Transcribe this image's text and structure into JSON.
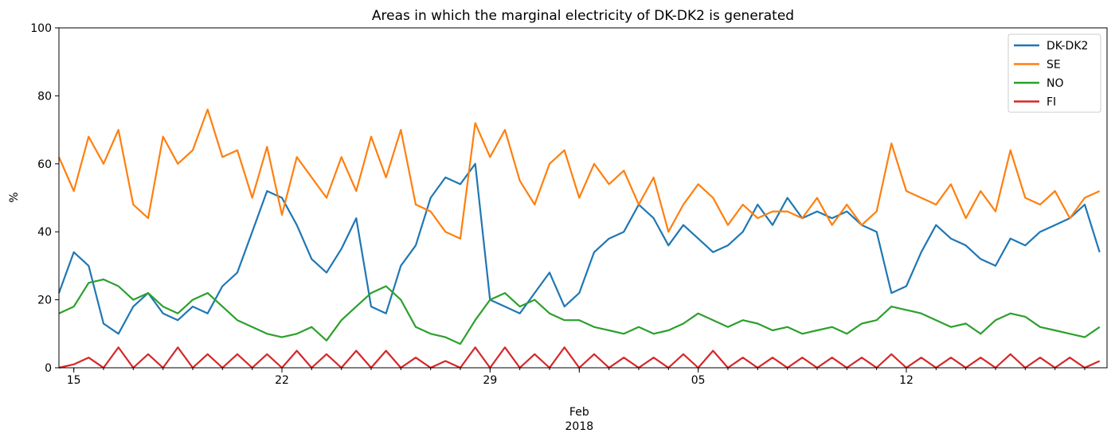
{
  "chart_data": {
    "type": "line",
    "title": "Areas in which the marginal electricity of DK-DK2 is generated",
    "ylabel": "%",
    "xlabel": "",
    "ylim": [
      0,
      100
    ],
    "yticks": [
      0,
      20,
      40,
      60,
      80,
      100
    ],
    "x_range": [
      "2018-01-14T12:00",
      "2018-02-18T18:00"
    ],
    "x_ticks": [
      {
        "date": "2018-01-15",
        "label": "15"
      },
      {
        "date": "2018-01-22",
        "label": "22"
      },
      {
        "date": "2018-01-29",
        "label": "29"
      },
      {
        "date": "2018-02-05",
        "label": "05"
      },
      {
        "date": "2018-02-12",
        "label": "12"
      }
    ],
    "x_secondary_label": {
      "date": "2018-02-01",
      "month": "Feb",
      "year": "2018"
    },
    "grid": false,
    "legend_position": "top-right",
    "series": [
      {
        "name": "DK-DK2",
        "color": "#1f77b4",
        "x": [
          "2018-01-14T12:00",
          "2018-01-15T00:00",
          "2018-01-15T12:00",
          "2018-01-16T00:00",
          "2018-01-16T12:00",
          "2018-01-17T00:00",
          "2018-01-17T12:00",
          "2018-01-18T00:00",
          "2018-01-18T12:00",
          "2018-01-19T00:00",
          "2018-01-19T12:00",
          "2018-01-20T00:00",
          "2018-01-20T12:00",
          "2018-01-21T00:00",
          "2018-01-21T12:00",
          "2018-01-22T00:00",
          "2018-01-22T12:00",
          "2018-01-23T00:00",
          "2018-01-23T12:00",
          "2018-01-24T00:00",
          "2018-01-24T12:00",
          "2018-01-25T00:00",
          "2018-01-25T12:00",
          "2018-01-26T00:00",
          "2018-01-26T12:00",
          "2018-01-27T00:00",
          "2018-01-27T12:00",
          "2018-01-28T00:00",
          "2018-01-28T12:00",
          "2018-01-29T00:00",
          "2018-01-29T12:00",
          "2018-01-30T00:00",
          "2018-01-30T12:00",
          "2018-01-31T00:00",
          "2018-01-31T12:00",
          "2018-02-01T00:00",
          "2018-02-01T12:00",
          "2018-02-02T00:00",
          "2018-02-02T12:00",
          "2018-02-03T00:00",
          "2018-02-03T12:00",
          "2018-02-04T00:00",
          "2018-02-04T12:00",
          "2018-02-05T00:00",
          "2018-02-05T12:00",
          "2018-02-06T00:00",
          "2018-02-06T12:00",
          "2018-02-07T00:00",
          "2018-02-07T12:00",
          "2018-02-08T00:00",
          "2018-02-08T12:00",
          "2018-02-09T00:00",
          "2018-02-09T12:00",
          "2018-02-10T00:00",
          "2018-02-10T12:00",
          "2018-02-11T00:00",
          "2018-02-11T12:00",
          "2018-02-12T00:00",
          "2018-02-12T12:00",
          "2018-02-13T00:00",
          "2018-02-13T12:00",
          "2018-02-14T00:00",
          "2018-02-14T12:00",
          "2018-02-15T00:00",
          "2018-02-15T12:00",
          "2018-02-16T00:00",
          "2018-02-16T12:00",
          "2018-02-17T00:00",
          "2018-02-17T12:00",
          "2018-02-18T00:00",
          "2018-02-18T12:00"
        ],
        "values": [
          22,
          34,
          30,
          13,
          10,
          18,
          22,
          16,
          14,
          18,
          16,
          24,
          28,
          40,
          52,
          50,
          42,
          32,
          28,
          35,
          44,
          18,
          16,
          30,
          36,
          50,
          56,
          54,
          60,
          20,
          18,
          16,
          22,
          28,
          18,
          22,
          34,
          38,
          40,
          48,
          44,
          36,
          42,
          38,
          34,
          36,
          40,
          48,
          42,
          50,
          44,
          46,
          44,
          46,
          42,
          40,
          22,
          24,
          34,
          42,
          38,
          36,
          32,
          30,
          38,
          36,
          40,
          42,
          44,
          48,
          34
        ]
      },
      {
        "name": "SE",
        "color": "#ff7f0e",
        "x": [
          "2018-01-14T12:00",
          "2018-01-15T00:00",
          "2018-01-15T12:00",
          "2018-01-16T00:00",
          "2018-01-16T12:00",
          "2018-01-17T00:00",
          "2018-01-17T12:00",
          "2018-01-18T00:00",
          "2018-01-18T12:00",
          "2018-01-19T00:00",
          "2018-01-19T12:00",
          "2018-01-20T00:00",
          "2018-01-20T12:00",
          "2018-01-21T00:00",
          "2018-01-21T12:00",
          "2018-01-22T00:00",
          "2018-01-22T12:00",
          "2018-01-23T00:00",
          "2018-01-23T12:00",
          "2018-01-24T00:00",
          "2018-01-24T12:00",
          "2018-01-25T00:00",
          "2018-01-25T12:00",
          "2018-01-26T00:00",
          "2018-01-26T12:00",
          "2018-01-27T00:00",
          "2018-01-27T12:00",
          "2018-01-28T00:00",
          "2018-01-28T12:00",
          "2018-01-29T00:00",
          "2018-01-29T12:00",
          "2018-01-30T00:00",
          "2018-01-30T12:00",
          "2018-01-31T00:00",
          "2018-01-31T12:00",
          "2018-02-01T00:00",
          "2018-02-01T12:00",
          "2018-02-02T00:00",
          "2018-02-02T12:00",
          "2018-02-03T00:00",
          "2018-02-03T12:00",
          "2018-02-04T00:00",
          "2018-02-04T12:00",
          "2018-02-05T00:00",
          "2018-02-05T12:00",
          "2018-02-06T00:00",
          "2018-02-06T12:00",
          "2018-02-07T00:00",
          "2018-02-07T12:00",
          "2018-02-08T00:00",
          "2018-02-08T12:00",
          "2018-02-09T00:00",
          "2018-02-09T12:00",
          "2018-02-10T00:00",
          "2018-02-10T12:00",
          "2018-02-11T00:00",
          "2018-02-11T12:00",
          "2018-02-12T00:00",
          "2018-02-12T12:00",
          "2018-02-13T00:00",
          "2018-02-13T12:00",
          "2018-02-14T00:00",
          "2018-02-14T12:00",
          "2018-02-15T00:00",
          "2018-02-15T12:00",
          "2018-02-16T00:00",
          "2018-02-16T12:00",
          "2018-02-17T00:00",
          "2018-02-17T12:00",
          "2018-02-18T00:00",
          "2018-02-18T12:00"
        ],
        "values": [
          62,
          52,
          68,
          60,
          70,
          48,
          44,
          68,
          60,
          64,
          76,
          62,
          64,
          50,
          65,
          45,
          62,
          56,
          50,
          62,
          52,
          68,
          56,
          70,
          48,
          46,
          40,
          38,
          72,
          62,
          70,
          55,
          48,
          60,
          64,
          50,
          60,
          54,
          58,
          48,
          56,
          40,
          48,
          54,
          50,
          42,
          48,
          44,
          46,
          46,
          44,
          50,
          42,
          48,
          42,
          46,
          66,
          52,
          50,
          48,
          54,
          44,
          52,
          46,
          64,
          50,
          48,
          52,
          44,
          50,
          52
        ]
      },
      {
        "name": "NO",
        "color": "#2ca02c",
        "x": [
          "2018-01-14T12:00",
          "2018-01-15T00:00",
          "2018-01-15T12:00",
          "2018-01-16T00:00",
          "2018-01-16T12:00",
          "2018-01-17T00:00",
          "2018-01-17T12:00",
          "2018-01-18T00:00",
          "2018-01-18T12:00",
          "2018-01-19T00:00",
          "2018-01-19T12:00",
          "2018-01-20T00:00",
          "2018-01-20T12:00",
          "2018-01-21T00:00",
          "2018-01-21T12:00",
          "2018-01-22T00:00",
          "2018-01-22T12:00",
          "2018-01-23T00:00",
          "2018-01-23T12:00",
          "2018-01-24T00:00",
          "2018-01-24T12:00",
          "2018-01-25T00:00",
          "2018-01-25T12:00",
          "2018-01-26T00:00",
          "2018-01-26T12:00",
          "2018-01-27T00:00",
          "2018-01-27T12:00",
          "2018-01-28T00:00",
          "2018-01-28T12:00",
          "2018-01-29T00:00",
          "2018-01-29T12:00",
          "2018-01-30T00:00",
          "2018-01-30T12:00",
          "2018-01-31T00:00",
          "2018-01-31T12:00",
          "2018-02-01T00:00",
          "2018-02-01T12:00",
          "2018-02-02T00:00",
          "2018-02-02T12:00",
          "2018-02-03T00:00",
          "2018-02-03T12:00",
          "2018-02-04T00:00",
          "2018-02-04T12:00",
          "2018-02-05T00:00",
          "2018-02-05T12:00",
          "2018-02-06T00:00",
          "2018-02-06T12:00",
          "2018-02-07T00:00",
          "2018-02-07T12:00",
          "2018-02-08T00:00",
          "2018-02-08T12:00",
          "2018-02-09T00:00",
          "2018-02-09T12:00",
          "2018-02-10T00:00",
          "2018-02-10T12:00",
          "2018-02-11T00:00",
          "2018-02-11T12:00",
          "2018-02-12T00:00",
          "2018-02-12T12:00",
          "2018-02-13T00:00",
          "2018-02-13T12:00",
          "2018-02-14T00:00",
          "2018-02-14T12:00",
          "2018-02-15T00:00",
          "2018-02-15T12:00",
          "2018-02-16T00:00",
          "2018-02-16T12:00",
          "2018-02-17T00:00",
          "2018-02-17T12:00",
          "2018-02-18T00:00",
          "2018-02-18T12:00"
        ],
        "values": [
          16,
          18,
          25,
          26,
          24,
          20,
          22,
          18,
          16,
          20,
          22,
          18,
          14,
          12,
          10,
          9,
          10,
          12,
          8,
          14,
          18,
          22,
          24,
          20,
          12,
          10,
          9,
          7,
          14,
          20,
          22,
          18,
          20,
          16,
          14,
          14,
          12,
          11,
          10,
          12,
          10,
          11,
          13,
          16,
          14,
          12,
          14,
          13,
          11,
          12,
          10,
          11,
          12,
          10,
          13,
          14,
          18,
          17,
          16,
          14,
          12,
          13,
          10,
          14,
          16,
          15,
          12,
          11,
          10,
          9,
          12
        ]
      },
      {
        "name": "FI",
        "color": "#d62728",
        "x": [
          "2018-01-14T12:00",
          "2018-01-15T00:00",
          "2018-01-15T12:00",
          "2018-01-16T00:00",
          "2018-01-16T12:00",
          "2018-01-17T00:00",
          "2018-01-17T12:00",
          "2018-01-18T00:00",
          "2018-01-18T12:00",
          "2018-01-19T00:00",
          "2018-01-19T12:00",
          "2018-01-20T00:00",
          "2018-01-20T12:00",
          "2018-01-21T00:00",
          "2018-01-21T12:00",
          "2018-01-22T00:00",
          "2018-01-22T12:00",
          "2018-01-23T00:00",
          "2018-01-23T12:00",
          "2018-01-24T00:00",
          "2018-01-24T12:00",
          "2018-01-25T00:00",
          "2018-01-25T12:00",
          "2018-01-26T00:00",
          "2018-01-26T12:00",
          "2018-01-27T00:00",
          "2018-01-27T12:00",
          "2018-01-28T00:00",
          "2018-01-28T12:00",
          "2018-01-29T00:00",
          "2018-01-29T12:00",
          "2018-01-30T00:00",
          "2018-01-30T12:00",
          "2018-01-31T00:00",
          "2018-01-31T12:00",
          "2018-02-01T00:00",
          "2018-02-01T12:00",
          "2018-02-02T00:00",
          "2018-02-02T12:00",
          "2018-02-03T00:00",
          "2018-02-03T12:00",
          "2018-02-04T00:00",
          "2018-02-04T12:00",
          "2018-02-05T00:00",
          "2018-02-05T12:00",
          "2018-02-06T00:00",
          "2018-02-06T12:00",
          "2018-02-07T00:00",
          "2018-02-07T12:00",
          "2018-02-08T00:00",
          "2018-02-08T12:00",
          "2018-02-09T00:00",
          "2018-02-09T12:00",
          "2018-02-10T00:00",
          "2018-02-10T12:00",
          "2018-02-11T00:00",
          "2018-02-11T12:00",
          "2018-02-12T00:00",
          "2018-02-12T12:00",
          "2018-02-13T00:00",
          "2018-02-13T12:00",
          "2018-02-14T00:00",
          "2018-02-14T12:00",
          "2018-02-15T00:00",
          "2018-02-15T12:00",
          "2018-02-16T00:00",
          "2018-02-16T12:00",
          "2018-02-17T00:00",
          "2018-02-17T12:00",
          "2018-02-18T00:00",
          "2018-02-18T12:00"
        ],
        "values": [
          0,
          1,
          3,
          0,
          6,
          0,
          4,
          0,
          6,
          0,
          4,
          0,
          4,
          0,
          4,
          0,
          5,
          0,
          4,
          0,
          5,
          0,
          5,
          0,
          3,
          0,
          2,
          0,
          6,
          0,
          6,
          0,
          4,
          0,
          6,
          0,
          4,
          0,
          3,
          0,
          3,
          0,
          4,
          0,
          5,
          0,
          3,
          0,
          3,
          0,
          3,
          0,
          3,
          0,
          3,
          0,
          4,
          0,
          3,
          0,
          3,
          0,
          3,
          0,
          4,
          0,
          3,
          0,
          3,
          0,
          2
        ]
      }
    ]
  }
}
